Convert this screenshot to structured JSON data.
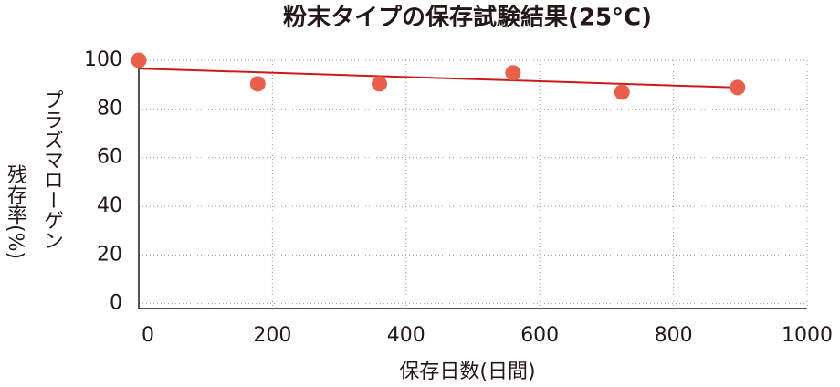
{
  "chart_data": {
    "type": "scatter",
    "title": "粉末タイプの保存試験結果(25°C)",
    "x_label": "保存日数(日間)",
    "y_label": [
      "プラズマローゲン",
      "残存率(%)"
    ],
    "series": [
      {
        "x": [
          0,
          178,
          360,
          560,
          723,
          896
        ],
        "values": [
          100,
          90.3,
          90.3,
          94.8,
          86.9,
          88.8
        ],
        "color": "#e8604c"
      }
    ],
    "trend": {
      "x": [
        0,
        896
      ],
      "values": [
        96.6,
        88.8
      ],
      "color": "#cc1a1a"
    },
    "xlim": [
      0,
      1000
    ],
    "ylim": [
      -2,
      103
    ],
    "xticks": [
      0,
      200,
      400,
      600,
      800,
      1000
    ],
    "yticks": [
      0,
      20,
      40,
      60,
      80,
      100
    ],
    "grid": true
  }
}
